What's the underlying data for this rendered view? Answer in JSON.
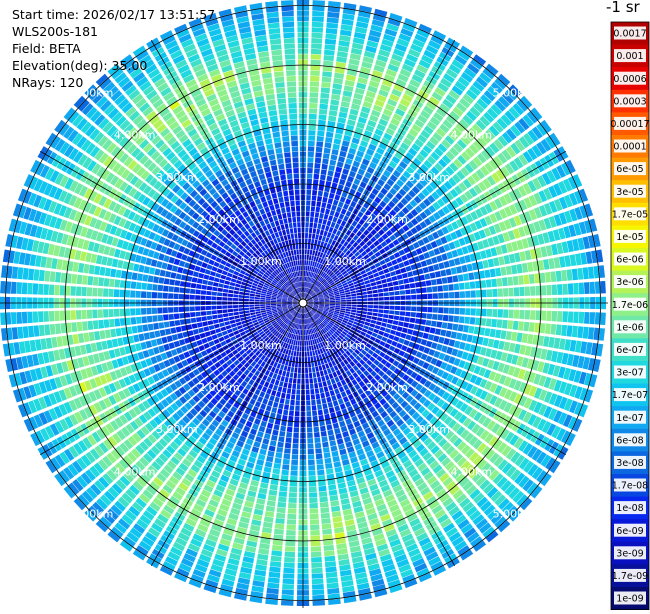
{
  "info": {
    "start_time": "Start time: 2026/02/17 13:51:57",
    "instrument": "WLS200s-181",
    "field": "Field: BETA",
    "elevation": "Elevation(deg): 35.00",
    "nrays": "NRays: 120"
  },
  "chart_data": {
    "type": "heatmap",
    "subtype": "polar-ppi",
    "field": "BETA",
    "elevation_deg": 35.0,
    "n_rays": 120,
    "range_rings_km": [
      1.0,
      2.0,
      3.0,
      4.0,
      5.0
    ],
    "ring_labels": [
      "1.00km",
      "2.00km",
      "3.00km",
      "4.00km",
      "5.00km"
    ],
    "max_range_km": 5.1,
    "azimuth_spokes_deg": [
      0,
      30,
      60,
      90,
      120,
      150,
      180,
      210,
      240,
      270,
      300,
      330
    ],
    "radial_profile": {
      "range_km": [
        0.0,
        0.5,
        1.0,
        1.5,
        2.0,
        2.5,
        3.0,
        3.5,
        4.0,
        4.5,
        5.1
      ],
      "beta_log10": [
        -8.7,
        -8.4,
        -8.2,
        -8.0,
        -7.9,
        -7.4,
        -6.6,
        -6.05,
        -5.75,
        -6.5,
        -7.2
      ]
    },
    "colorbar": {
      "title": "-1 sr",
      "ticks": [
        "0.0017",
        "0.001",
        "0.0006",
        "0.0003",
        "0.00017",
        "0.0001",
        "6e-05",
        "3e-05",
        "1.7e-05",
        "1e-05",
        "6e-06",
        "3e-06",
        "1.7e-06",
        "1e-06",
        "6e-07",
        "3e-07",
        "1.7e-07",
        "1e-07",
        "6e-08",
        "3e-08",
        "1.7e-08",
        "1e-08",
        "6e-09",
        "3e-09",
        "1.7e-09",
        "1e-09"
      ],
      "colors": [
        "#b00000",
        "#c80000",
        "#e60000",
        "#ff3000",
        "#ff5a00",
        "#ff7a00",
        "#ff9a00",
        "#ffbe00",
        "#ffde00",
        "#f6f600",
        "#d8f820",
        "#b4f25a",
        "#8ef088",
        "#70e8a8",
        "#40e0c8",
        "#20d8e0",
        "#10c4f0",
        "#10a8f0",
        "#1088e8",
        "#0c68e0",
        "#0848e0",
        "#0828f0",
        "#0818d8",
        "#0810c0",
        "#06109a",
        "#040a70"
      ]
    },
    "colors": {
      "grid": "#000000",
      "ray_separator": "#ffffff",
      "label": "#ffffff"
    }
  }
}
